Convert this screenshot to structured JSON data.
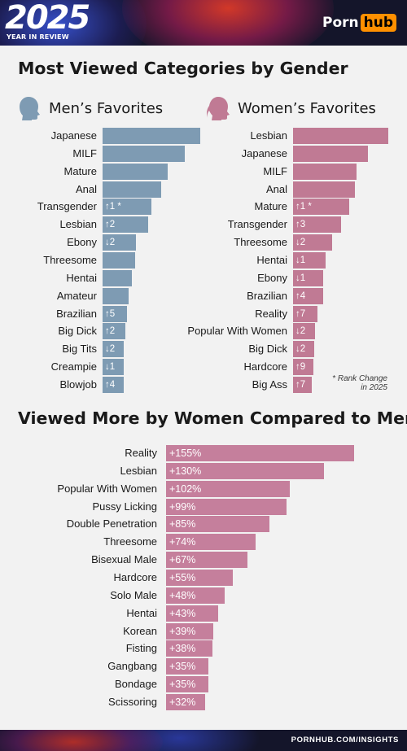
{
  "header": {
    "year": "2025",
    "year_subtitle": "YEAR IN REVIEW",
    "logo_part1": "Porn",
    "logo_part2": "hub"
  },
  "section1": {
    "title": "Most Viewed Categories by Gender",
    "men_heading": "Men’s Favorites",
    "women_heading": "Women’s Favorites",
    "note_line1": "* Rank Change",
    "note_line2": "in 2025"
  },
  "section2": {
    "title": "Viewed More by Women Compared to Men"
  },
  "footer": {
    "url": "PORNHUB.COM/INSIGHTS"
  },
  "colors": {
    "men": "#7e9bb3",
    "women": "#c07a94",
    "comparison": "#c57f9c",
    "brand_orange": "#ff9000"
  },
  "chart_data": [
    {
      "type": "bar",
      "title": "Men’s Favorites",
      "categories": [
        "Japanese",
        "MILF",
        "Mature",
        "Anal",
        "Transgender",
        "Lesbian",
        "Ebony",
        "Threesome",
        "Hentai",
        "Amateur",
        "Brazilian",
        "Big Dick",
        "Big Tits",
        "Creampie",
        "Blowjob"
      ],
      "values": [
        100,
        84,
        67,
        60,
        50,
        47,
        34,
        33,
        30,
        27,
        25,
        23,
        22,
        22,
        22
      ],
      "rank_change": [
        "",
        "",
        "",
        "",
        "↑1 *",
        "↑2",
        "↓2",
        "",
        "",
        "",
        "↑5",
        "↑2",
        "↓2",
        "↓1",
        "↑4"
      ]
    },
    {
      "type": "bar",
      "title": "Women’s Favorites",
      "categories": [
        "Lesbian",
        "Japanese",
        "MILF",
        "Anal",
        "Mature",
        "Transgender",
        "Threesome",
        "Hentai",
        "Ebony",
        "Brazilian",
        "Reality",
        "Popular With Women",
        "Big Dick",
        "Hardcore",
        "Big Ass"
      ],
      "values": [
        100,
        79,
        67,
        65,
        59,
        50,
        41,
        34,
        32,
        32,
        26,
        23,
        22,
        21,
        20
      ],
      "rank_change": [
        "",
        "",
        "",
        "",
        "↑1 *",
        "↑3",
        "↓2",
        "↓1",
        "↓1",
        "↑4",
        "↑7",
        "↓2",
        "↓2",
        "↑9",
        "↑7"
      ]
    },
    {
      "type": "bar",
      "title": "Viewed More by Women Compared to Men",
      "categories": [
        "Reality",
        "Lesbian",
        "Popular With Women",
        "Pussy Licking",
        "Double Penetration",
        "Threesome",
        "Bisexual Male",
        "Hardcore",
        "Solo Male",
        "Hentai",
        "Korean",
        "Fisting",
        "Gangbang",
        "Bondage",
        "Scissoring"
      ],
      "values": [
        155,
        130,
        102,
        99,
        85,
        74,
        67,
        55,
        48,
        43,
        39,
        38,
        35,
        35,
        32
      ],
      "labels": [
        "+155%",
        "+130%",
        "+102%",
        "+99%",
        "+85%",
        "+74%",
        "+67%",
        "+55%",
        "+48%",
        "+43%",
        "+39%",
        "+38%",
        "+35%",
        "+35%",
        "+32%"
      ]
    }
  ]
}
